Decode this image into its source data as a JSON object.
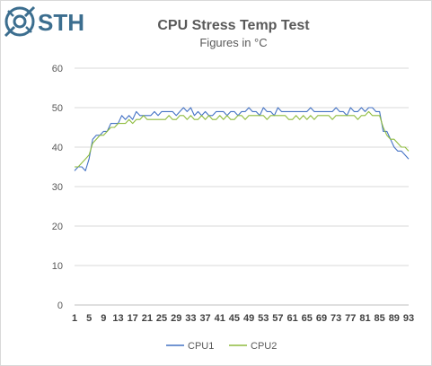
{
  "logo": {
    "text": "STH"
  },
  "chart_data": {
    "type": "line",
    "title": "CPU Stress Temp Test",
    "subtitle": "Figures in °C",
    "xlabel": "",
    "ylabel": "",
    "ylim": [
      0,
      60
    ],
    "yticks": [
      0,
      10,
      20,
      30,
      40,
      50,
      60
    ],
    "xticks": [
      1,
      5,
      9,
      13,
      17,
      21,
      25,
      29,
      33,
      37,
      41,
      45,
      49,
      53,
      57,
      61,
      65,
      69,
      73,
      77,
      81,
      85,
      89,
      93
    ],
    "x": [
      1,
      2,
      3,
      4,
      5,
      6,
      7,
      8,
      9,
      10,
      11,
      12,
      13,
      14,
      15,
      16,
      17,
      18,
      19,
      20,
      21,
      22,
      23,
      24,
      25,
      26,
      27,
      28,
      29,
      30,
      31,
      32,
      33,
      34,
      35,
      36,
      37,
      38,
      39,
      40,
      41,
      42,
      43,
      44,
      45,
      46,
      47,
      48,
      49,
      50,
      51,
      52,
      53,
      54,
      55,
      56,
      57,
      58,
      59,
      60,
      61,
      62,
      63,
      64,
      65,
      66,
      67,
      68,
      69,
      70,
      71,
      72,
      73,
      74,
      75,
      76,
      77,
      78,
      79,
      80,
      81,
      82,
      83,
      84,
      85,
      86,
      87,
      88,
      89,
      90,
      91,
      92,
      93
    ],
    "grid": true,
    "legend": "bottom",
    "series": [
      {
        "name": "CPU1",
        "color": "#4472c4",
        "values": [
          34,
          35,
          35,
          34,
          37,
          42,
          43,
          43,
          44,
          44,
          46,
          46,
          46,
          48,
          47,
          48,
          47,
          49,
          48,
          48,
          48,
          48,
          49,
          48,
          49,
          49,
          49,
          49,
          48,
          49,
          50,
          49,
          50,
          48,
          49,
          48,
          49,
          48,
          48,
          49,
          49,
          49,
          48,
          49,
          49,
          48,
          49,
          49,
          50,
          49,
          49,
          48,
          50,
          49,
          49,
          48,
          50,
          49,
          49,
          49,
          49,
          49,
          49,
          49,
          49,
          50,
          49,
          49,
          49,
          49,
          49,
          49,
          50,
          49,
          49,
          48,
          50,
          49,
          49,
          50,
          49,
          50,
          50,
          49,
          49,
          44,
          44,
          42,
          40,
          39,
          39,
          38,
          37
        ]
      },
      {
        "name": "CPU2",
        "color": "#8fbc3f",
        "values": [
          35,
          35,
          36,
          37,
          38,
          41,
          42,
          43,
          43,
          44,
          45,
          45,
          46,
          46,
          46,
          47,
          46,
          47,
          47,
          48,
          47,
          47,
          47,
          47,
          47,
          47,
          48,
          47,
          47,
          48,
          48,
          47,
          48,
          47,
          47,
          48,
          47,
          48,
          47,
          47,
          48,
          47,
          48,
          47,
          47,
          48,
          48,
          47,
          48,
          48,
          48,
          48,
          48,
          47,
          48,
          48,
          48,
          48,
          48,
          47,
          47,
          48,
          47,
          48,
          47,
          48,
          47,
          48,
          48,
          48,
          48,
          47,
          48,
          48,
          48,
          48,
          48,
          48,
          47,
          48,
          48,
          49,
          48,
          48,
          48,
          45,
          43,
          42,
          42,
          41,
          40,
          40,
          39
        ]
      }
    ]
  }
}
